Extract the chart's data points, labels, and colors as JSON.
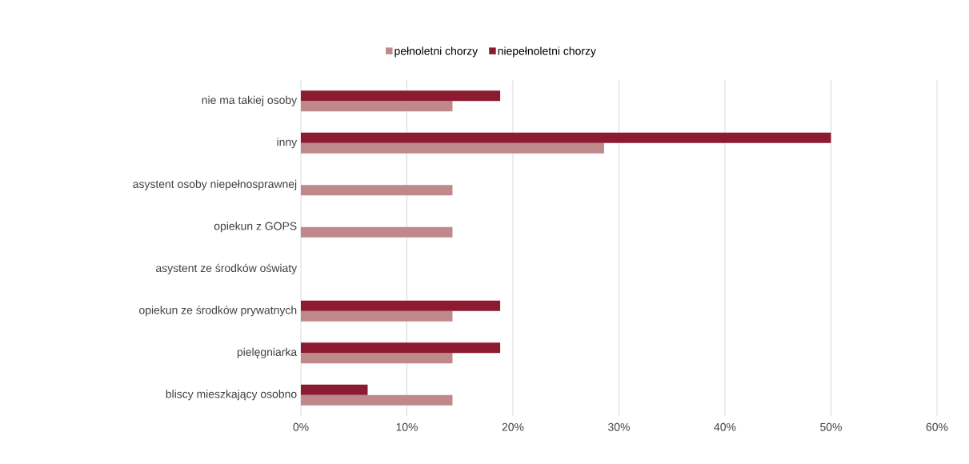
{
  "chart_data": {
    "type": "bar",
    "orientation": "horizontal",
    "categories": [
      "nie ma takiej osoby",
      "inny",
      "asystent osoby niepełnosprawnej",
      "opiekun z GOPS",
      "asystent ze środków oświaty",
      "opiekun ze środków prywatnych",
      "pielęgniarka",
      "bliscy mieszkający osobno"
    ],
    "series": [
      {
        "name": "pełnoletni chorzy",
        "color": "#bf898c",
        "values": [
          14.3,
          28.6,
          14.3,
          14.3,
          0,
          14.3,
          14.3,
          14.3
        ]
      },
      {
        "name": "niepełnoletni chorzy",
        "color": "#8c1a30",
        "values": [
          18.8,
          50,
          0,
          0,
          0,
          18.8,
          18.8,
          6.3
        ]
      }
    ],
    "xlim": [
      0,
      60
    ],
    "xticks": [
      {
        "value": 0,
        "label": "0%"
      },
      {
        "value": 10,
        "label": "10%"
      },
      {
        "value": 20,
        "label": "20%"
      },
      {
        "value": 30,
        "label": "30%"
      },
      {
        "value": 40,
        "label": "40%"
      },
      {
        "value": 50,
        "label": "50%"
      },
      {
        "value": 60,
        "label": "60%"
      }
    ],
    "grid": "x",
    "legend": "top"
  }
}
